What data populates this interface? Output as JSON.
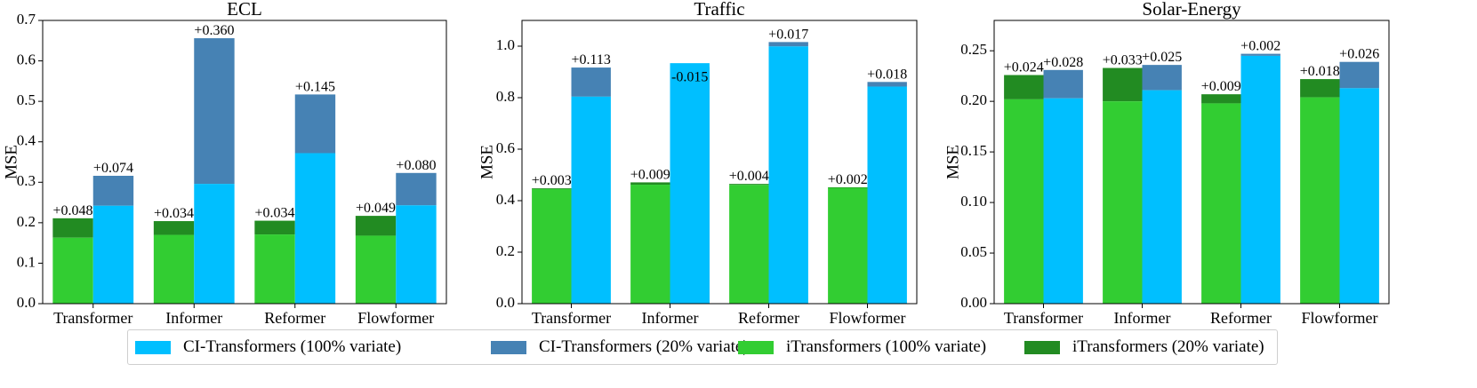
{
  "charts": [
    {
      "title": "ECL",
      "ylabel": "MSE",
      "categories": [
        "Transformer",
        "Informer",
        "Reformer",
        "Flowformer"
      ],
      "ylim": [
        0,
        0.7
      ],
      "yticks": [
        "0.0",
        "0.1",
        "0.2",
        "0.3",
        "0.4",
        "0.5",
        "0.6",
        "0.7"
      ],
      "ytick_values": [
        0,
        0.1,
        0.2,
        0.3,
        0.4,
        0.5,
        0.6,
        0.7
      ],
      "itransformer_100": [
        0.163,
        0.17,
        0.171,
        0.168
      ],
      "itransformer_20": [
        0.211,
        0.204,
        0.205,
        0.217
      ],
      "itransformer_delta_labels": [
        "+0.048",
        "+0.034",
        "+0.034",
        "+0.049"
      ],
      "ci_100": [
        0.242,
        0.296,
        0.372,
        0.243
      ],
      "ci_20": [
        0.316,
        0.656,
        0.517,
        0.323
      ],
      "ci_delta_labels": [
        "+0.074",
        "+0.360",
        "+0.145",
        "+0.080"
      ]
    },
    {
      "title": "Traffic",
      "ylabel": "MSE",
      "categories": [
        "Transformer",
        "Informer",
        "Reformer",
        "Flowformer"
      ],
      "ylim": [
        0,
        1.1
      ],
      "yticks": [
        "0.0",
        "0.2",
        "0.4",
        "0.6",
        "0.8",
        "1.0"
      ],
      "ytick_values": [
        0,
        0.2,
        0.4,
        0.6,
        0.8,
        1.0
      ],
      "itransformer_100": [
        0.445,
        0.462,
        0.461,
        0.45
      ],
      "itransformer_20": [
        0.448,
        0.471,
        0.465,
        0.452
      ],
      "itransformer_delta_labels": [
        "+0.003",
        "+0.009",
        "+0.004",
        "+0.002"
      ],
      "ci_100": [
        0.804,
        0.934,
        0.999,
        0.843
      ],
      "ci_20": [
        0.917,
        0.919,
        1.016,
        0.861
      ],
      "ci_delta_labels": [
        "+0.113",
        "-0.015",
        "+0.017",
        "+0.018"
      ]
    },
    {
      "title": "Solar-Energy",
      "ylabel": "MSE",
      "categories": [
        "Transformer",
        "Informer",
        "Reformer",
        "Flowformer"
      ],
      "ylim": [
        0,
        0.28
      ],
      "yticks": [
        "0.00",
        "0.05",
        "0.10",
        "0.15",
        "0.20",
        "0.25"
      ],
      "ytick_values": [
        0,
        0.05,
        0.1,
        0.15,
        0.2,
        0.25
      ],
      "itransformer_100": [
        0.202,
        0.2,
        0.198,
        0.204
      ],
      "itransformer_20": [
        0.226,
        0.233,
        0.207,
        0.222
      ],
      "itransformer_delta_labels": [
        "+0.024",
        "+0.033",
        "+0.009",
        "+0.018"
      ],
      "ci_100": [
        0.203,
        0.211,
        0.245,
        0.213
      ],
      "ci_20": [
        0.231,
        0.236,
        0.247,
        0.239
      ],
      "ci_delta_labels": [
        "+0.028",
        "+0.025",
        "+0.002",
        "+0.026"
      ]
    }
  ],
  "colors": {
    "ci_100": "#00bfff",
    "ci_20": "#4682b4",
    "itransformer_100": "#32cd32",
    "itransformer_20": "#228b22"
  },
  "legend": [
    {
      "label": "CI-Transformers (100% variate)",
      "color": "#00bfff"
    },
    {
      "label": "CI-Transformers (20% variate)",
      "color": "#4682b4"
    },
    {
      "label": "iTransformers (100% variate)",
      "color": "#32cd32"
    },
    {
      "label": "iTransformers (20% variate)",
      "color": "#228b22"
    }
  ]
}
